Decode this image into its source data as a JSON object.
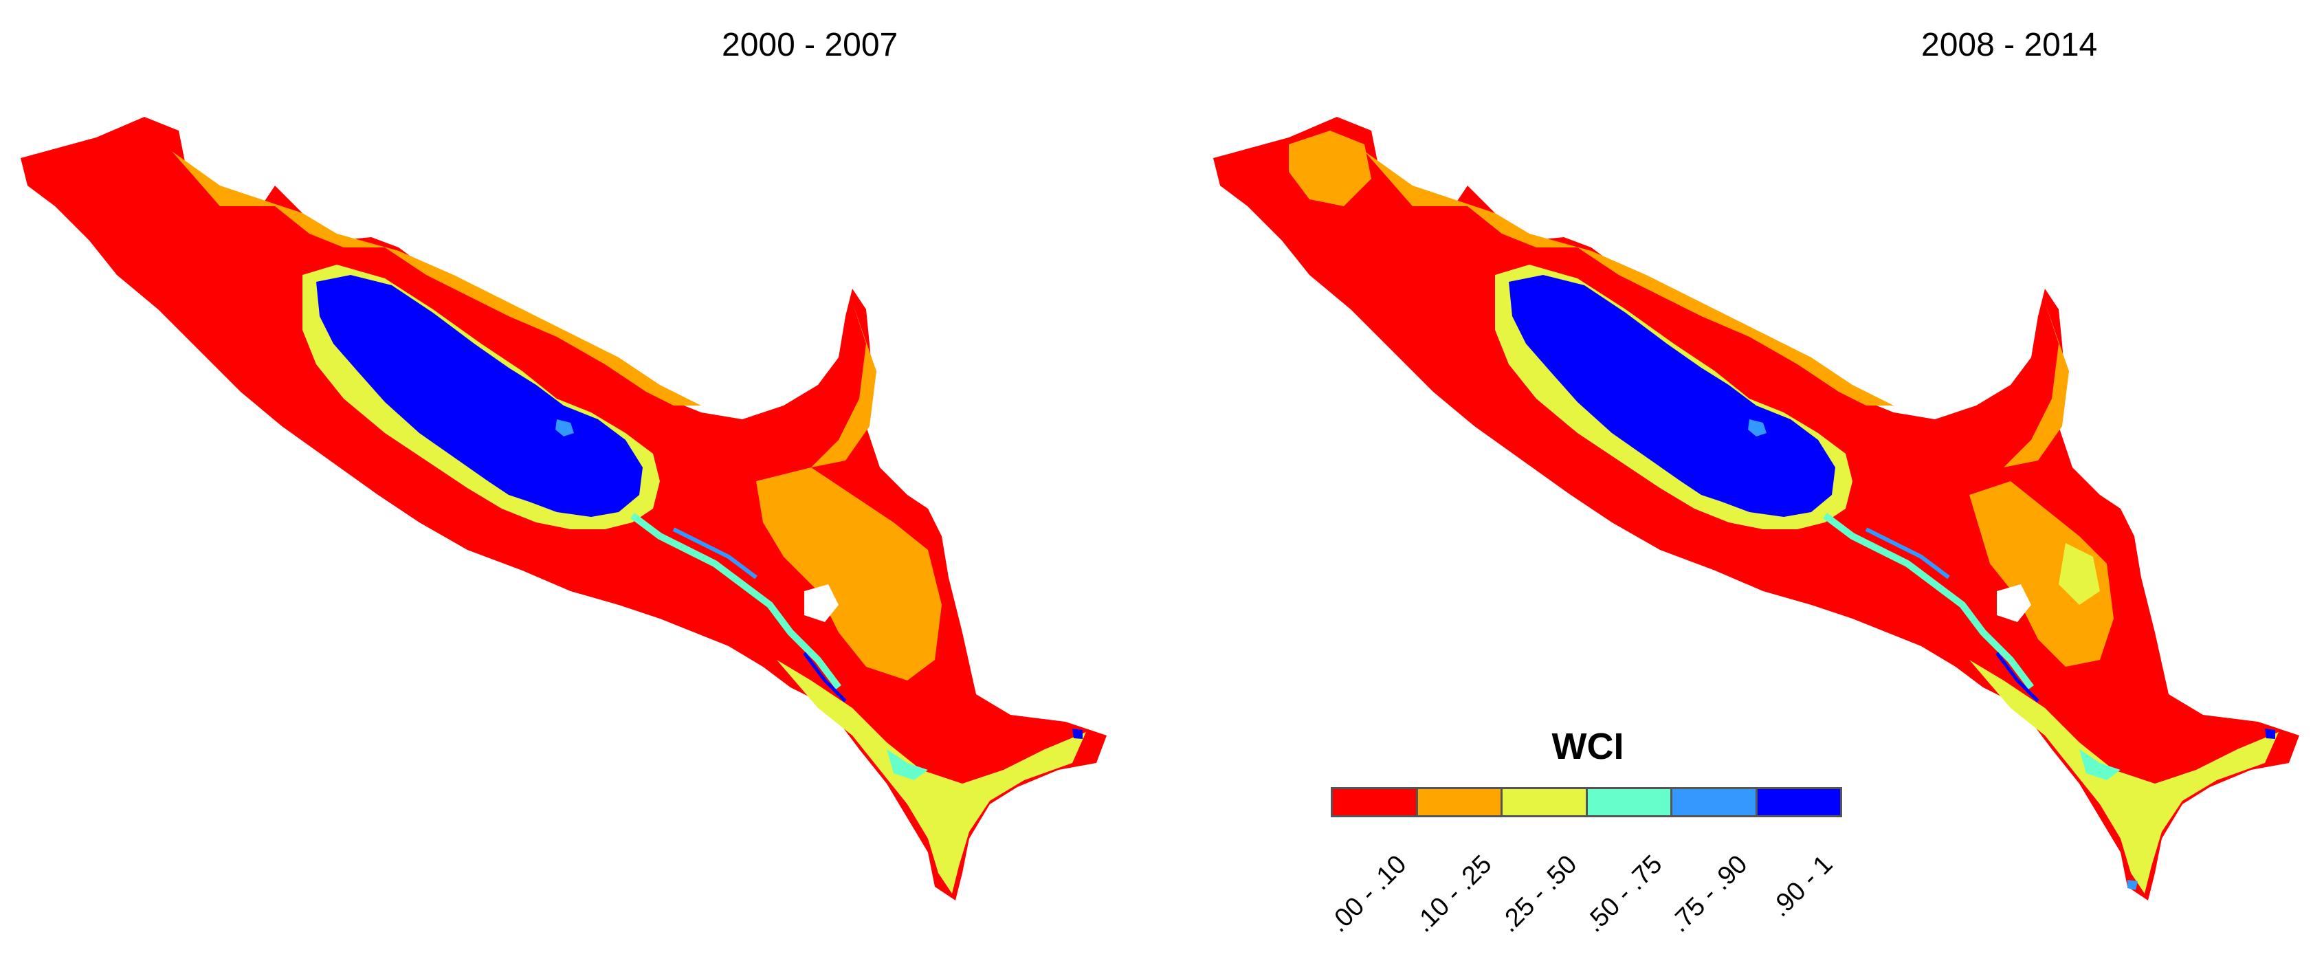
{
  "panels": [
    {
      "title": "2000 - 2007"
    },
    {
      "title": "2008 - 2014"
    }
  ],
  "legend": {
    "title": "WCI",
    "classes": [
      {
        "label": ".00 - .10",
        "color": "#ff0000"
      },
      {
        "label": ".10 - .25",
        "color": "#ffa500"
      },
      {
        "label": ".25 - .50",
        "color": "#e6f542"
      },
      {
        "label": ".50 - .75",
        "color": "#66ffcc"
      },
      {
        "label": ".75 - .90",
        "color": "#3399ff"
      },
      {
        "label": ".90 - 1",
        "color": "#0000ff"
      }
    ]
  }
}
